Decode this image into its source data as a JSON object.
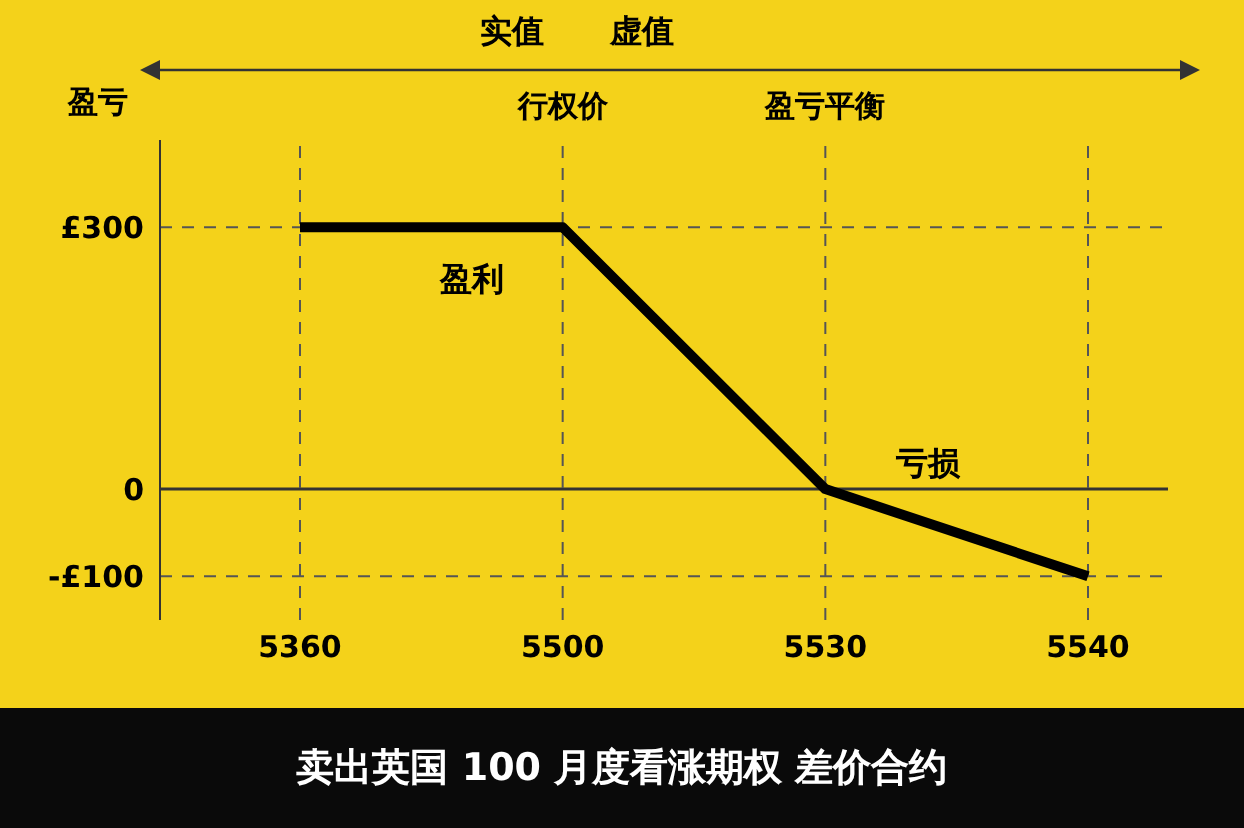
{
  "chart_data": {
    "type": "line",
    "title": "卖出英国 100 月度看涨期权 差价合约",
    "ylabel": "盈亏",
    "categories": [
      "5360",
      "5500",
      "5530",
      "5540"
    ],
    "series": [
      {
        "color": "#000000",
        "values": [
          300,
          300,
          0,
          -100
        ]
      }
    ],
    "ylim": [
      -150,
      400
    ],
    "yticks": [
      {
        "value": 300,
        "label": "£300"
      },
      {
        "value": 0,
        "label": "0"
      },
      {
        "value": -100,
        "label": "-£100"
      }
    ],
    "ref_lines": [
      {
        "axis": "y",
        "value": 300,
        "line_style": "dashed"
      },
      {
        "axis": "y",
        "value": -100,
        "line_style": "dashed"
      },
      {
        "axis": "x",
        "value": "5360",
        "line_style": "dashed"
      },
      {
        "axis": "x",
        "value": "5500",
        "label": "行权价",
        "line_style": "dashed"
      },
      {
        "axis": "x",
        "value": "5530",
        "label": "盈亏平衡",
        "line_style": "dashed"
      },
      {
        "axis": "x",
        "value": "5540",
        "line_style": "dashed"
      }
    ],
    "annotations": [
      "实值",
      "虚值",
      "盈利",
      "亏损"
    ],
    "grid": false,
    "legend": false,
    "marker": "none",
    "line_style": "solid"
  }
}
